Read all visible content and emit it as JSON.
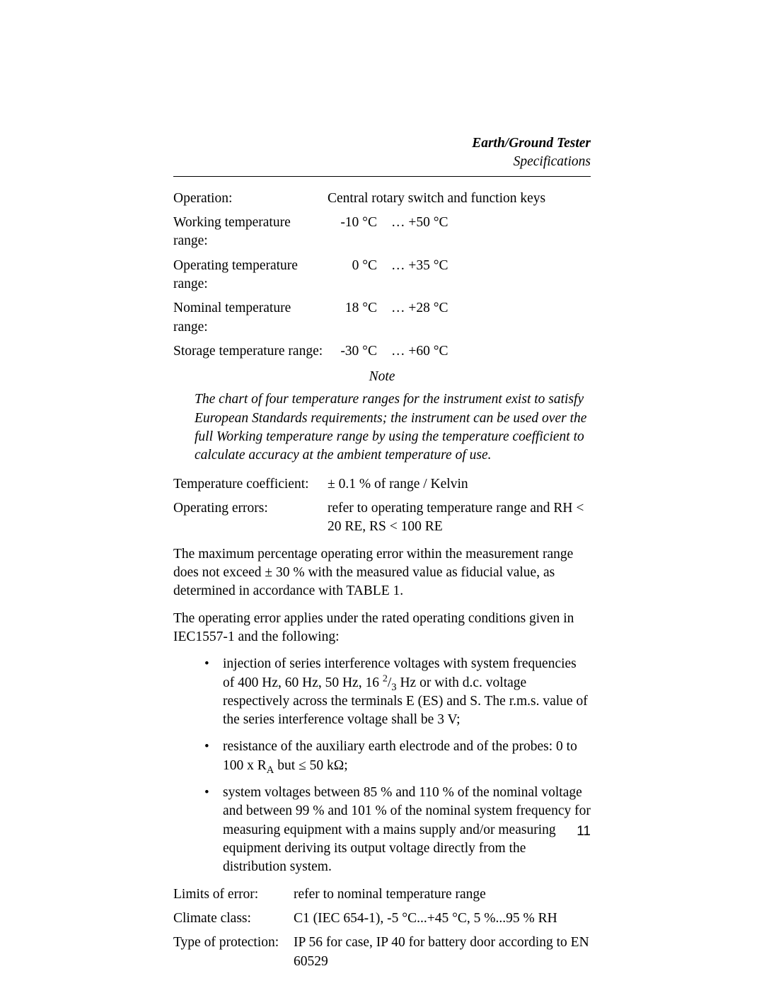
{
  "header": {
    "title": "Earth/Ground Tester",
    "subtitle": "Specifications"
  },
  "specs_top": [
    {
      "label": "Operation:",
      "value_full": "Central rotary switch and function keys"
    },
    {
      "label": "Working temperature range:",
      "t1": "-10 °C",
      "t2": "… +50 °C"
    },
    {
      "label": "Operating temperature range:",
      "t1": "0 °C",
      "t2": "… +35 °C"
    },
    {
      "label": "Nominal temperature range:",
      "t1": "18 °C",
      "t2": "… +28 °C"
    },
    {
      "label": "Storage temperature range:",
      "t1": "-30 °C",
      "t2": "… +60 °C"
    }
  ],
  "note": {
    "label": "Note",
    "body": "The chart of four temperature ranges for the instrument exist to satisfy European Standards requirements; the instrument can be used over the full Working temperature range by using the temperature coefficient to calculate accuracy at the ambient temperature of use."
  },
  "specs_mid": [
    {
      "label": "Temperature coefficient:",
      "value": "± 0.1 % of  range / Kelvin"
    },
    {
      "label": "Operating errors:",
      "value": "refer to operating temperature range and RH < 20 RE, RS < 100 RE"
    }
  ],
  "para1": "The maximum percentage operating error within the measurement range does not exceed ± 30 % with the measured value as fiducial value, as determined in accordance with TABLE 1.",
  "para2": "The operating error applies under the rated operating conditions given in IEC1557-1 and the following:",
  "bullets": {
    "b1_pre": "injection of series interference voltages with system frequencies of 400 Hz, 60 Hz, 50 Hz, 16 ",
    "b1_sup": "2",
    "b1_slash": "/",
    "b1_sub": "3",
    "b1_post": " Hz or with d.c. voltage respectively across the terminals E (ES) and S. The r.m.s. value of the series interference voltage shall be 3 V;",
    "b2_pre": "resistance of the auxiliary earth electrode and of the probes: 0 to 100 x R",
    "b2_sub": "A",
    "b2_post": " but ≤ 50 kΩ;",
    "b3": "system voltages between 85 % and 110 % of the nominal voltage and between 99 % and 101 % of the nominal system frequency for measuring equipment with a mains supply and/or measuring equipment deriving its output voltage directly from the distribution system."
  },
  "specs_bottom": [
    {
      "label": "Limits of error:",
      "value": "refer to nominal temperature range"
    },
    {
      "label": "Climate class:",
      "value": "C1 (IEC 654-1), -5 °C...+45 °C, 5 %...95 % RH"
    },
    {
      "label": "Type of protection:",
      "value": "IP 56 for case, IP 40 for battery door according to EN 60529"
    }
  ],
  "page_number": "11"
}
